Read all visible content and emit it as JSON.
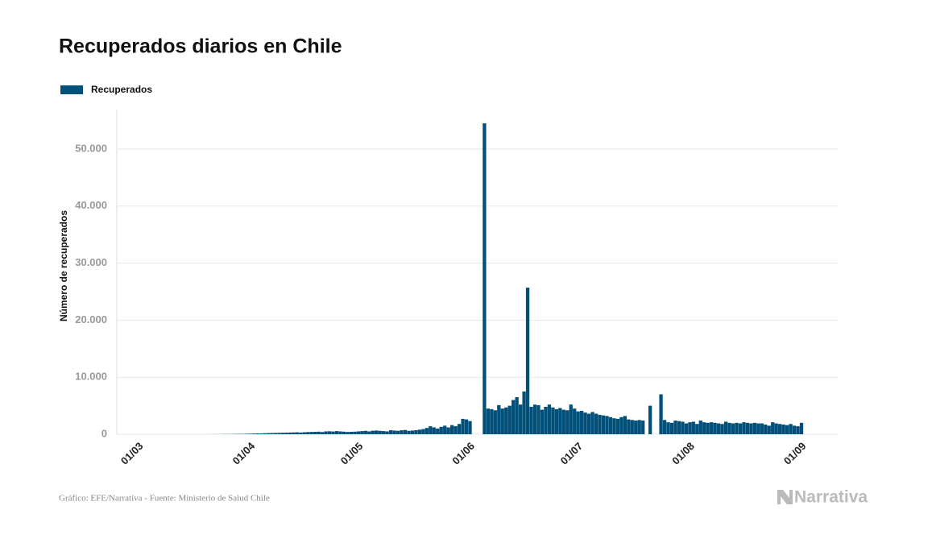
{
  "chart_data": {
    "type": "bar",
    "title": "Recuperados diarios en Chile",
    "ylabel": "Número de recuperados",
    "source": "Gráfico: EFE/Narrativa - Fuente: Ministerio de Salud Chile",
    "brand": "Narrativa",
    "grid": true,
    "legend": "top-left",
    "ylim": [
      0,
      57000
    ],
    "yticks": [
      0,
      {
        "value": 10000,
        "label": "10.000"
      },
      {
        "value": 20000,
        "label": "20.000"
      },
      {
        "value": 30000,
        "label": "30.000"
      },
      {
        "value": 40000,
        "label": "40.000"
      },
      {
        "value": 50000,
        "label": "50.000"
      }
    ],
    "categories": [
      "01/03",
      null,
      null,
      null,
      null,
      null,
      null,
      null,
      null,
      null,
      null,
      null,
      null,
      null,
      null,
      null,
      null,
      null,
      null,
      null,
      null,
      null,
      null,
      null,
      null,
      null,
      null,
      null,
      null,
      null,
      null,
      "01/04",
      null,
      null,
      null,
      null,
      null,
      null,
      null,
      null,
      null,
      null,
      null,
      null,
      null,
      null,
      null,
      null,
      null,
      null,
      null,
      null,
      null,
      null,
      null,
      null,
      null,
      null,
      null,
      null,
      null,
      "01/05",
      null,
      null,
      null,
      null,
      null,
      null,
      null,
      null,
      null,
      null,
      null,
      null,
      null,
      null,
      null,
      null,
      null,
      null,
      null,
      null,
      null,
      null,
      null,
      null,
      null,
      null,
      null,
      null,
      null,
      null,
      "01/06",
      null,
      null,
      null,
      null,
      null,
      null,
      null,
      null,
      null,
      null,
      null,
      null,
      null,
      null,
      null,
      null,
      null,
      null,
      null,
      null,
      null,
      null,
      null,
      null,
      null,
      null,
      null,
      null,
      null,
      "01/07",
      null,
      null,
      null,
      null,
      null,
      null,
      null,
      null,
      null,
      null,
      null,
      null,
      null,
      null,
      null,
      null,
      null,
      null,
      null,
      null,
      null,
      null,
      null,
      null,
      null,
      null,
      null,
      null,
      null,
      null,
      "01/08",
      null,
      null,
      null,
      null,
      null,
      null,
      null,
      null,
      null,
      null,
      null,
      null,
      null,
      null,
      null,
      null,
      null,
      null,
      null,
      null,
      null,
      null,
      null,
      null,
      null,
      null,
      null,
      null,
      null,
      null,
      "01/09"
    ],
    "series": [
      {
        "name": "Recuperados",
        "color": "#00507a",
        "values": [
          0,
          0,
          0,
          0,
          0,
          0,
          0,
          0,
          0,
          0,
          0,
          0,
          0,
          0,
          0,
          0,
          0,
          0,
          1,
          2,
          5,
          10,
          15,
          20,
          30,
          30,
          40,
          50,
          60,
          60,
          80,
          100,
          120,
          150,
          140,
          180,
          200,
          220,
          230,
          250,
          260,
          280,
          300,
          320,
          340,
          300,
          350,
          380,
          400,
          420,
          450,
          380,
          500,
          520,
          480,
          550,
          500,
          450,
          400,
          420,
          450,
          500,
          550,
          600,
          500,
          620,
          650,
          600,
          550,
          500,
          700,
          650,
          600,
          700,
          750,
          600,
          650,
          700,
          800,
          900,
          1100,
          1400,
          1200,
          1000,
          1300,
          1500,
          1200,
          1600,
          1400,
          1800,
          2700,
          2600,
          2300,
          null,
          null,
          null,
          54500,
          4500,
          4400,
          4200,
          5100,
          4500,
          4700,
          5000,
          6000,
          6500,
          5200,
          7500,
          25700,
          4800,
          5200,
          5100,
          4300,
          4800,
          5200,
          4700,
          4400,
          4600,
          4300,
          4200,
          5200,
          4500,
          4000,
          4100,
          3800,
          3600,
          3900,
          3600,
          3400,
          3300,
          3200,
          3000,
          2800,
          2700,
          3000,
          3200,
          2600,
          2500,
          2400,
          2500,
          2400,
          null,
          5000,
          null,
          null,
          7000,
          2500,
          2100,
          2000,
          2400,
          2300,
          2200,
          1900,
          2100,
          2200,
          1800,
          2400,
          2100,
          2000,
          2100,
          2000,
          1900,
          1800,
          2200,
          2000,
          1900,
          2000,
          1900,
          2100,
          2000,
          1900,
          2000,
          1900,
          1900,
          1700,
          1500,
          2100,
          1900,
          1800,
          1700,
          1600,
          1800,
          1500,
          1400,
          2000
        ]
      }
    ]
  }
}
